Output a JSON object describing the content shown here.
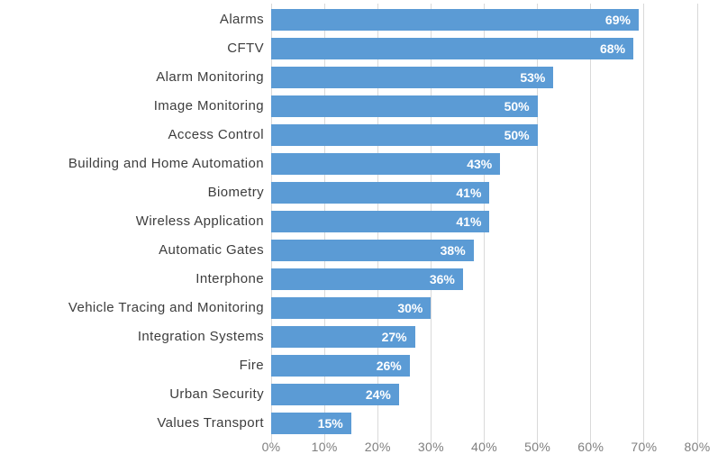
{
  "chart_data": {
    "type": "bar",
    "orientation": "horizontal",
    "title": "",
    "xlabel": "",
    "ylabel": "",
    "categories": [
      "Alarms",
      "CFTV",
      "Alarm Monitoring",
      "Image Monitoring",
      "Access Control",
      "Building and Home Automation",
      "Biometry",
      "Wireless Application",
      "Automatic Gates",
      "Interphone",
      "Vehicle Tracing and Monitoring",
      "Integration Systems",
      "Fire",
      "Urban Security",
      "Values Transport"
    ],
    "values": [
      69,
      68,
      53,
      50,
      50,
      43,
      41,
      41,
      38,
      36,
      30,
      27,
      26,
      24,
      15
    ],
    "value_labels": [
      "69%",
      "68%",
      "53%",
      "50%",
      "50%",
      "43%",
      "41%",
      "41%",
      "38%",
      "36%",
      "30%",
      "27%",
      "26%",
      "24%",
      "15%"
    ],
    "xlim": [
      0,
      80
    ],
    "x_ticks": [
      0,
      10,
      20,
      30,
      40,
      50,
      60,
      70,
      80
    ],
    "x_tick_labels": [
      "0%",
      "10%",
      "20%",
      "30%",
      "40%",
      "50%",
      "60%",
      "70%",
      "80%"
    ],
    "grid": "vertical",
    "legend": "none",
    "colors": {
      "bar": "#5b9bd5",
      "value_label": "#ffffff",
      "category_label": "#3d3d3d",
      "axis_tick_label": "#7f7f7f",
      "gridline": "#d9d9d9",
      "background": "#ffffff"
    }
  }
}
